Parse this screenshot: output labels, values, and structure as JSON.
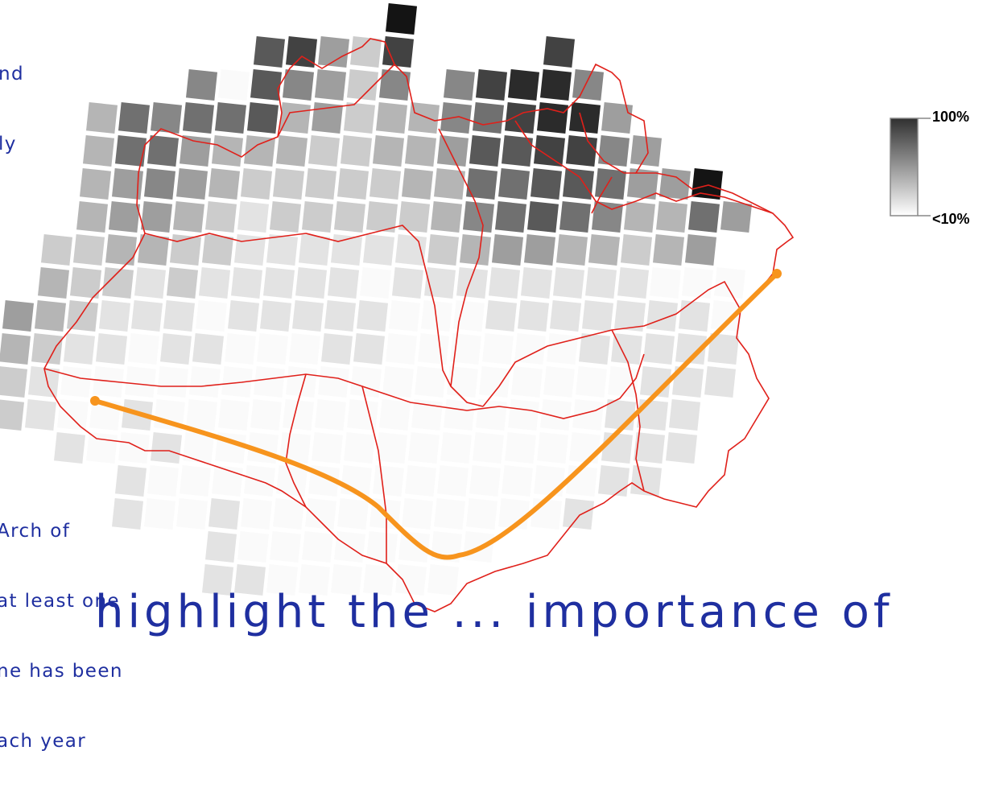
{
  "notes": {
    "top_note_lines": [
      "nd",
      "ly"
    ],
    "arch_note_lines": [
      "Arch of",
      "at least one",
      "ne has been",
      "ach year"
    ],
    "bottom_caption": "highlight the ... importance of"
  },
  "legend": {
    "max_label": "100%",
    "min_label": "<10%",
    "gradient_top": "#303030",
    "gradient_bottom": "#ffffff"
  },
  "colors": {
    "boundary": "#e0201a",
    "arch": "#f7941d",
    "text": "#1f2fa0"
  },
  "map": {
    "legend_scale": "percent",
    "grid_rows": [
      [
        null,
        null,
        null,
        null,
        null,
        null,
        null,
        null,
        null,
        null,
        null,
        10,
        null,
        null,
        null,
        null,
        null,
        null,
        null,
        null,
        null,
        null,
        null,
        null,
        null
      ],
      [
        null,
        null,
        null,
        null,
        null,
        null,
        null,
        7,
        8,
        4,
        2,
        8,
        null,
        null,
        null,
        null,
        8,
        null,
        null,
        null,
        null,
        null,
        null,
        null,
        null
      ],
      [
        null,
        null,
        null,
        null,
        null,
        5,
        0,
        7,
        5,
        4,
        2,
        5,
        null,
        5,
        8,
        9,
        9,
        5,
        null,
        null,
        null,
        null,
        null,
        null,
        null
      ],
      [
        null,
        null,
        3,
        6,
        5,
        6,
        6,
        7,
        3,
        4,
        2,
        3,
        3,
        5,
        6,
        8,
        9,
        9,
        4,
        null,
        null,
        null,
        null,
        null,
        null
      ],
      [
        null,
        null,
        3,
        6,
        6,
        4,
        3,
        3,
        3,
        2,
        2,
        3,
        3,
        4,
        7,
        7,
        8,
        8,
        5,
        4,
        null,
        null,
        null,
        null,
        null
      ],
      [
        null,
        null,
        3,
        4,
        5,
        4,
        3,
        2,
        2,
        2,
        2,
        2,
        3,
        3,
        6,
        6,
        7,
        7,
        6,
        4,
        4,
        10,
        null,
        null,
        null
      ],
      [
        null,
        null,
        3,
        4,
        4,
        3,
        2,
        1,
        2,
        2,
        2,
        2,
        2,
        3,
        5,
        6,
        7,
        6,
        5,
        3,
        3,
        6,
        4,
        null,
        null
      ],
      [
        null,
        2,
        2,
        3,
        3,
        2,
        2,
        1,
        1,
        1,
        1,
        1,
        1,
        2,
        3,
        4,
        4,
        3,
        3,
        2,
        3,
        4,
        null,
        null,
        null
      ],
      [
        null,
        3,
        2,
        2,
        1,
        2,
        1,
        1,
        1,
        1,
        1,
        0,
        1,
        1,
        1,
        1,
        1,
        1,
        1,
        1,
        0,
        0,
        0,
        null,
        null
      ],
      [
        4,
        3,
        2,
        1,
        1,
        1,
        0,
        1,
        1,
        1,
        1,
        1,
        0,
        0,
        0,
        1,
        1,
        1,
        1,
        1,
        1,
        1,
        0,
        null,
        null
      ],
      [
        3,
        2,
        1,
        1,
        0,
        1,
        1,
        0,
        0,
        0,
        1,
        1,
        0,
        0,
        0,
        0,
        0,
        0,
        1,
        1,
        1,
        1,
        1,
        null,
        null
      ],
      [
        2,
        1,
        0,
        0,
        0,
        0,
        0,
        0,
        0,
        0,
        0,
        0,
        0,
        0,
        0,
        0,
        0,
        0,
        0,
        0,
        1,
        1,
        1,
        null,
        null
      ],
      [
        2,
        1,
        0,
        0,
        1,
        0,
        0,
        0,
        0,
        0,
        0,
        0,
        0,
        0,
        0,
        0,
        0,
        0,
        0,
        1,
        1,
        1,
        null,
        null,
        null
      ],
      [
        null,
        null,
        1,
        0,
        0,
        1,
        0,
        0,
        0,
        0,
        0,
        0,
        0,
        0,
        0,
        0,
        0,
        0,
        0,
        1,
        1,
        1,
        null,
        null,
        null
      ],
      [
        null,
        null,
        null,
        null,
        1,
        0,
        0,
        0,
        0,
        0,
        0,
        0,
        0,
        0,
        0,
        0,
        0,
        0,
        0,
        1,
        1,
        null,
        null,
        null,
        null
      ],
      [
        null,
        null,
        null,
        null,
        1,
        0,
        0,
        1,
        0,
        0,
        0,
        0,
        0,
        0,
        0,
        0,
        0,
        0,
        1,
        null,
        null,
        null,
        null,
        null,
        null
      ],
      [
        null,
        null,
        null,
        null,
        null,
        null,
        null,
        1,
        0,
        0,
        0,
        0,
        0,
        0,
        0,
        0,
        null,
        null,
        null,
        null,
        null,
        null,
        null,
        null,
        null
      ],
      [
        null,
        null,
        null,
        null,
        null,
        null,
        null,
        1,
        1,
        0,
        0,
        0,
        0,
        0,
        0,
        null,
        null,
        null,
        null,
        null,
        null,
        null,
        null,
        null,
        null
      ]
    ]
  }
}
